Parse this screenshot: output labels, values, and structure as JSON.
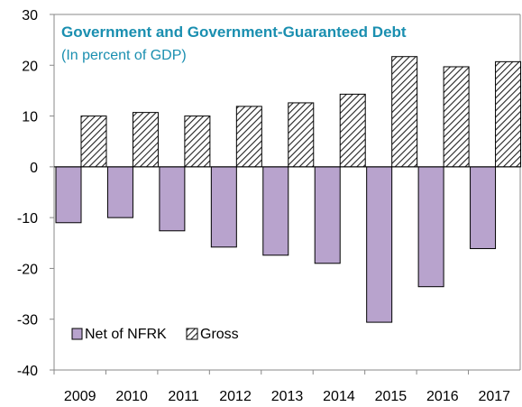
{
  "chart_data": {
    "type": "bar",
    "title": "Government and Government-Guaranteed Debt",
    "subtitle": "(In percent of GDP)",
    "categories": [
      "2009",
      "2010",
      "2011",
      "2012",
      "2013",
      "2014",
      "2015",
      "2016",
      "2017"
    ],
    "series": [
      {
        "name": "Net of NFRK",
        "values": [
          -11.0,
          -10.0,
          -12.6,
          -15.8,
          -17.4,
          -19.0,
          -30.6,
          -23.6,
          -16.1
        ],
        "color": "#b8a3cd",
        "pattern": "solid"
      },
      {
        "name": "Gross",
        "values": [
          10.0,
          10.7,
          10.0,
          11.9,
          12.6,
          14.3,
          21.7,
          19.7,
          20.7
        ],
        "color": "#ffffff",
        "pattern": "diagonal-hatch"
      }
    ],
    "ylim": [
      -40,
      30
    ],
    "yticks": [
      "30",
      "20",
      "10",
      "0",
      "-10",
      "-20",
      "-30",
      "-40"
    ],
    "xlabel": "",
    "ylabel": "",
    "grid": false,
    "legend_position": "bottom-left"
  }
}
